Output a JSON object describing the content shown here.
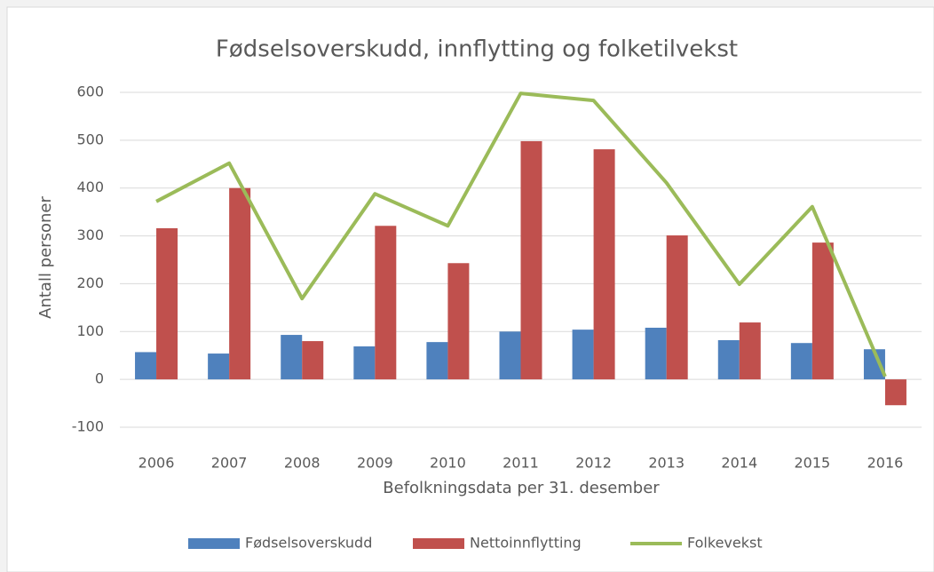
{
  "chart_data": {
    "type": "bar_line",
    "title": "Fødselsoverskudd, innflytting og folketilvekst",
    "ylabel": "Antall personer",
    "xlabel": "Befolkningsdata per 31. desember",
    "categories": [
      "2006",
      "2007",
      "2008",
      "2009",
      "2010",
      "2011",
      "2012",
      "2013",
      "2014",
      "2015",
      "2016"
    ],
    "series": [
      {
        "name": "Fødselsoverskudd",
        "type": "bar",
        "color": "#4f81bd",
        "values": [
          57,
          54,
          93,
          69,
          78,
          100,
          104,
          108,
          82,
          76,
          63
        ]
      },
      {
        "name": "Nettoinnflytting",
        "type": "bar",
        "color": "#c0504d",
        "values": [
          316,
          400,
          80,
          321,
          243,
          498,
          481,
          301,
          119,
          286,
          -54
        ]
      },
      {
        "name": "Folkevekst",
        "type": "line",
        "color": "#9bbb59",
        "values": [
          372,
          452,
          169,
          388,
          321,
          598,
          583,
          411,
          199,
          361,
          6
        ]
      }
    ],
    "ylim": [
      -100,
      600
    ],
    "yticks": [
      -100,
      0,
      100,
      200,
      300,
      400,
      500,
      600
    ],
    "grid": true,
    "legend": "bottom"
  }
}
